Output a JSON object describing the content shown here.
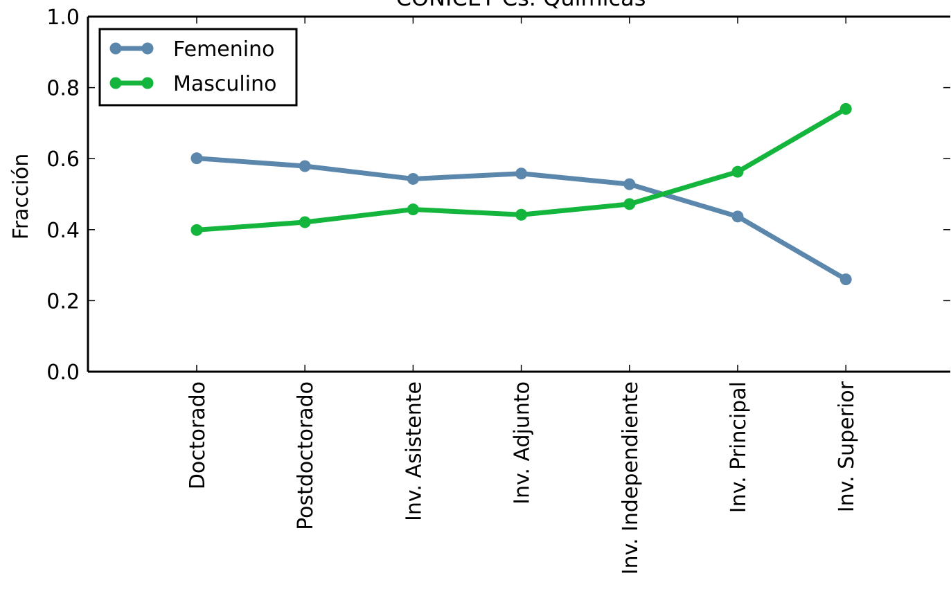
{
  "chart_data": {
    "type": "line",
    "title": "CONICET Cs. Químicas",
    "xlabel": "",
    "ylabel": "Fracción",
    "categories": [
      "Doctorado",
      "Postdoctorado",
      "Inv. Asistente",
      "Inv. Adjunto",
      "Inv. Independiente",
      "Inv. Principal",
      "Inv. Superior"
    ],
    "series": [
      {
        "name": "Femenino",
        "color": "#5b87ac",
        "values": [
          0.601,
          0.579,
          0.543,
          0.558,
          0.528,
          0.437,
          0.26
        ]
      },
      {
        "name": "Masculino",
        "color": "#14b53c",
        "values": [
          0.399,
          0.421,
          0.457,
          0.442,
          0.472,
          0.563,
          0.74
        ]
      }
    ],
    "ylim": [
      0.0,
      1.0
    ],
    "yticks": [
      "0.0",
      "0.2",
      "0.4",
      "0.6",
      "0.8",
      "1.0"
    ],
    "grid": false,
    "legend_position": "top-left"
  }
}
